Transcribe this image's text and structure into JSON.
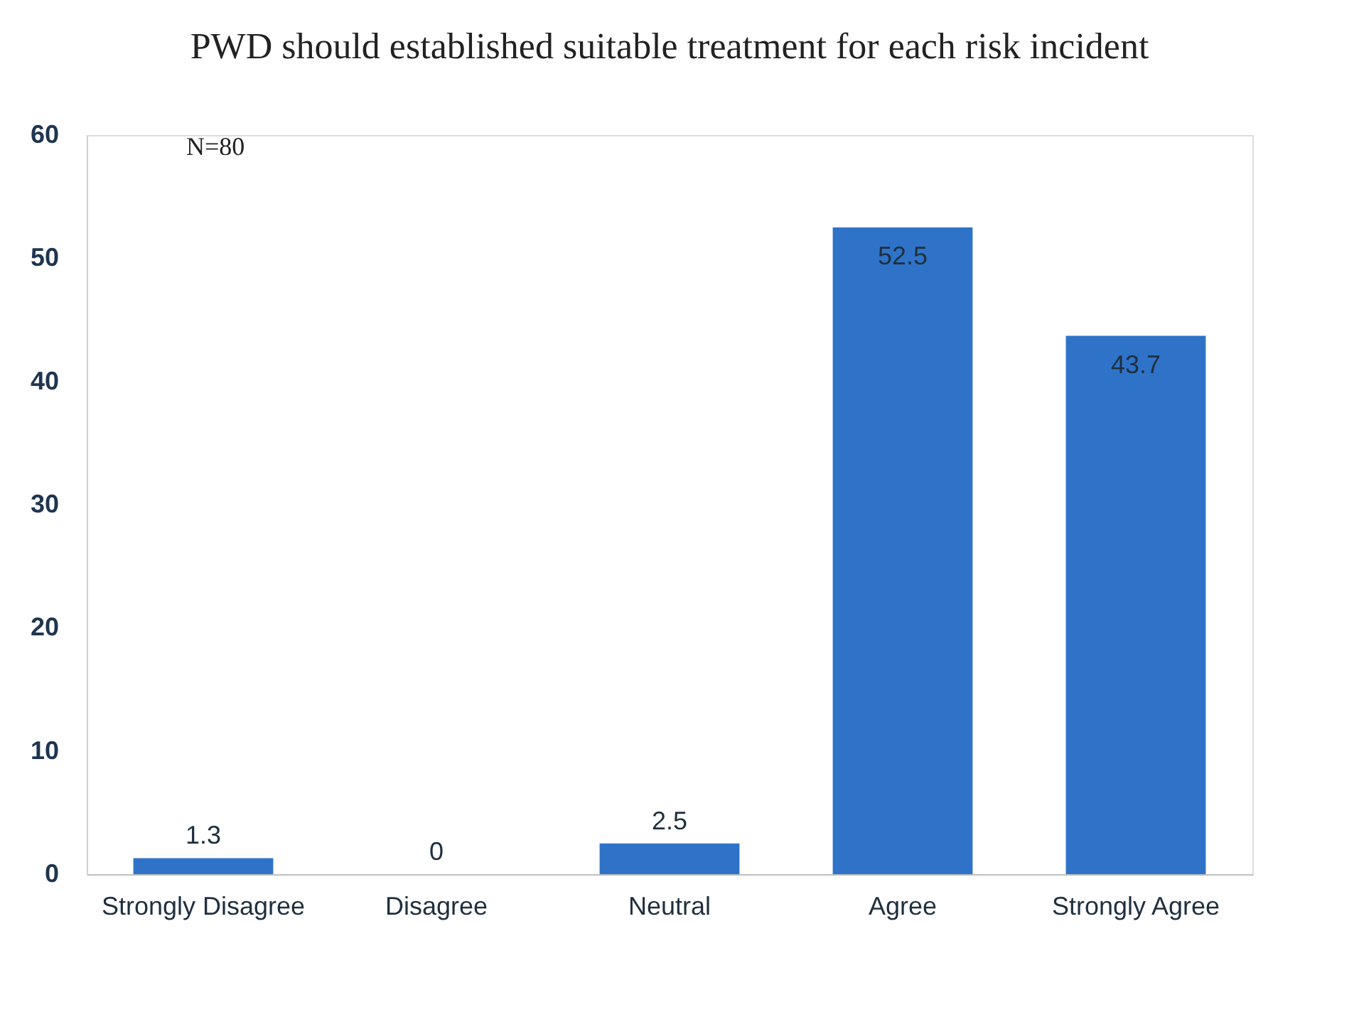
{
  "chart_data": {
    "type": "bar",
    "title": "PWD should established suitable treatment for each risk incident",
    "categories": [
      "Strongly Disagree",
      "Disagree",
      "Neutral",
      "Agree",
      "Strongly Agree"
    ],
    "values": [
      1.3,
      0,
      2.5,
      52.5,
      43.7
    ],
    "color": "#2e73c8",
    "ylim": [
      0,
      60
    ],
    "yticks": [
      0,
      10,
      20,
      30,
      40,
      50,
      60
    ],
    "grid": false,
    "data_labels": true,
    "annotations": [
      "N=80"
    ]
  }
}
